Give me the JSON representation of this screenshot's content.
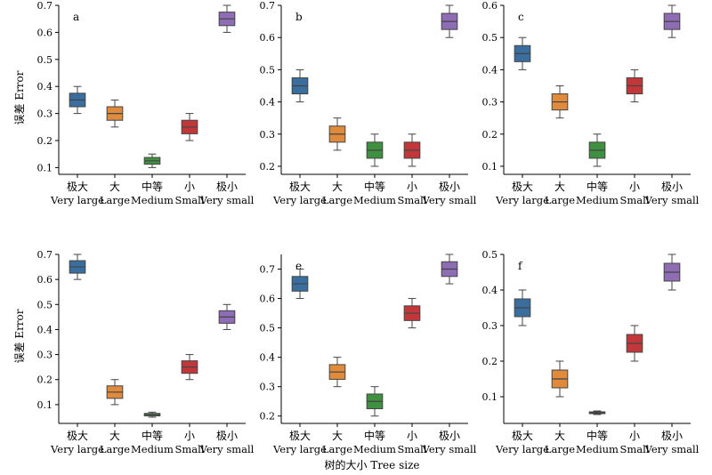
{
  "figure": {
    "ylabel": "误差 Error",
    "xlabel": "树的大小 Tree size"
  },
  "chart_data": [
    {
      "type": "box",
      "panel_label": "a",
      "categories": [
        [
          "极大",
          "Very large"
        ],
        [
          "大",
          "Large"
        ],
        [
          "中等",
          "Medium"
        ],
        [
          "小",
          "Small"
        ],
        [
          "极小",
          "Very small"
        ]
      ],
      "ylabel": "误差 Error",
      "yticks": [
        0.1,
        0.2,
        0.3,
        0.4,
        0.5,
        0.6,
        0.7
      ],
      "ylim": [
        0.075,
        0.7
      ],
      "boxes": [
        {
          "min": 0.3,
          "q1": 0.325,
          "median": 0.35,
          "q3": 0.375,
          "max": 0.4
        },
        {
          "min": 0.25,
          "q1": 0.275,
          "median": 0.3,
          "q3": 0.325,
          "max": 0.35
        },
        {
          "min": 0.1,
          "q1": 0.1125,
          "median": 0.125,
          "q3": 0.1375,
          "max": 0.15
        },
        {
          "min": 0.2,
          "q1": 0.225,
          "median": 0.25,
          "q3": 0.275,
          "max": 0.3
        },
        {
          "min": 0.6,
          "q1": 0.625,
          "median": 0.65,
          "q3": 0.675,
          "max": 0.7
        }
      ]
    },
    {
      "type": "box",
      "panel_label": "b",
      "categories": [
        [
          "极大",
          "Very large"
        ],
        [
          "大",
          "Large"
        ],
        [
          "中等",
          "Medium"
        ],
        [
          "小",
          "Small"
        ],
        [
          "极小",
          "Very small"
        ]
      ],
      "yticks": [
        0.2,
        0.3,
        0.4,
        0.5,
        0.6,
        0.7
      ],
      "ylim": [
        0.175,
        0.7
      ],
      "boxes": [
        {
          "min": 0.4,
          "q1": 0.425,
          "median": 0.45,
          "q3": 0.475,
          "max": 0.5
        },
        {
          "min": 0.25,
          "q1": 0.275,
          "median": 0.3,
          "q3": 0.325,
          "max": 0.35
        },
        {
          "min": 0.2,
          "q1": 0.225,
          "median": 0.25,
          "q3": 0.275,
          "max": 0.3
        },
        {
          "min": 0.2,
          "q1": 0.225,
          "median": 0.25,
          "q3": 0.275,
          "max": 0.3
        },
        {
          "min": 0.6,
          "q1": 0.625,
          "median": 0.65,
          "q3": 0.675,
          "max": 0.7
        }
      ]
    },
    {
      "type": "box",
      "panel_label": "c",
      "categories": [
        [
          "极大",
          "Very large"
        ],
        [
          "大",
          "Large"
        ],
        [
          "中等",
          "Medium"
        ],
        [
          "小",
          "Small"
        ],
        [
          "极小",
          "Very small"
        ]
      ],
      "yticks": [
        0.1,
        0.2,
        0.3,
        0.4,
        0.5,
        0.6
      ],
      "ylim": [
        0.075,
        0.6
      ],
      "boxes": [
        {
          "min": 0.4,
          "q1": 0.425,
          "median": 0.45,
          "q3": 0.475,
          "max": 0.5
        },
        {
          "min": 0.25,
          "q1": 0.275,
          "median": 0.3,
          "q3": 0.325,
          "max": 0.35
        },
        {
          "min": 0.1,
          "q1": 0.125,
          "median": 0.15,
          "q3": 0.175,
          "max": 0.2
        },
        {
          "min": 0.3,
          "q1": 0.325,
          "median": 0.35,
          "q3": 0.375,
          "max": 0.4
        },
        {
          "min": 0.5,
          "q1": 0.525,
          "median": 0.55,
          "q3": 0.575,
          "max": 0.6
        }
      ]
    },
    {
      "type": "box",
      "panel_label": "d",
      "categories": [
        [
          "极大",
          "Very large"
        ],
        [
          "大",
          "Large"
        ],
        [
          "中等",
          "Medium"
        ],
        [
          "小",
          "Small"
        ],
        [
          "极小",
          "Very small"
        ]
      ],
      "ylabel": "误差 Error",
      "yticks": [
        0.1,
        0.2,
        0.3,
        0.4,
        0.5,
        0.6,
        0.7
      ],
      "ylim": [
        0.025,
        0.7
      ],
      "boxes": [
        {
          "min": 0.6,
          "q1": 0.625,
          "median": 0.65,
          "q3": 0.675,
          "max": 0.7
        },
        {
          "min": 0.1,
          "q1": 0.125,
          "median": 0.15,
          "q3": 0.175,
          "max": 0.2
        },
        {
          "min": 0.05,
          "q1": 0.055,
          "median": 0.06,
          "q3": 0.065,
          "max": 0.07
        },
        {
          "min": 0.2,
          "q1": 0.225,
          "median": 0.25,
          "q3": 0.275,
          "max": 0.3
        },
        {
          "min": 0.4,
          "q1": 0.425,
          "median": 0.45,
          "q3": 0.475,
          "max": 0.5
        }
      ]
    },
    {
      "type": "box",
      "panel_label": "e",
      "categories": [
        [
          "极大",
          "Very large"
        ],
        [
          "大",
          "Large"
        ],
        [
          "中等",
          "Medium"
        ],
        [
          "小",
          "Small"
        ],
        [
          "极小",
          "Very small"
        ]
      ],
      "yticks": [
        0.2,
        0.3,
        0.4,
        0.5,
        0.6,
        0.7
      ],
      "ylim": [
        0.175,
        0.75
      ],
      "boxes": [
        {
          "min": 0.6,
          "q1": 0.625,
          "median": 0.65,
          "q3": 0.675,
          "max": 0.7
        },
        {
          "min": 0.3,
          "q1": 0.325,
          "median": 0.35,
          "q3": 0.375,
          "max": 0.4
        },
        {
          "min": 0.2,
          "q1": 0.225,
          "median": 0.25,
          "q3": 0.275,
          "max": 0.3
        },
        {
          "min": 0.5,
          "q1": 0.525,
          "median": 0.55,
          "q3": 0.575,
          "max": 0.6
        },
        {
          "min": 0.65,
          "q1": 0.675,
          "median": 0.7,
          "q3": 0.725,
          "max": 0.75
        }
      ]
    },
    {
      "type": "box",
      "panel_label": "f",
      "categories": [
        [
          "极大",
          "Very large"
        ],
        [
          "大",
          "Large"
        ],
        [
          "中等",
          "Medium"
        ],
        [
          "小",
          "Small"
        ],
        [
          "极小",
          "Very small"
        ]
      ],
      "yticks": [
        0.1,
        0.2,
        0.3,
        0.4,
        0.5
      ],
      "ylim": [
        0.025,
        0.5
      ],
      "boxes": [
        {
          "min": 0.3,
          "q1": 0.325,
          "median": 0.35,
          "q3": 0.375,
          "max": 0.4
        },
        {
          "min": 0.1,
          "q1": 0.125,
          "median": 0.15,
          "q3": 0.175,
          "max": 0.2
        },
        {
          "min": 0.05,
          "q1": 0.0525,
          "median": 0.055,
          "q3": 0.0575,
          "max": 0.06
        },
        {
          "min": 0.2,
          "q1": 0.225,
          "median": 0.25,
          "q3": 0.275,
          "max": 0.3
        },
        {
          "min": 0.4,
          "q1": 0.425,
          "median": 0.45,
          "q3": 0.475,
          "max": 0.5
        }
      ]
    }
  ],
  "colors": {
    "box_fills": [
      "#3a6e9e",
      "#e08a3c",
      "#3f9141",
      "#c2383a",
      "#8e6db5"
    ],
    "outline": "#444444"
  }
}
